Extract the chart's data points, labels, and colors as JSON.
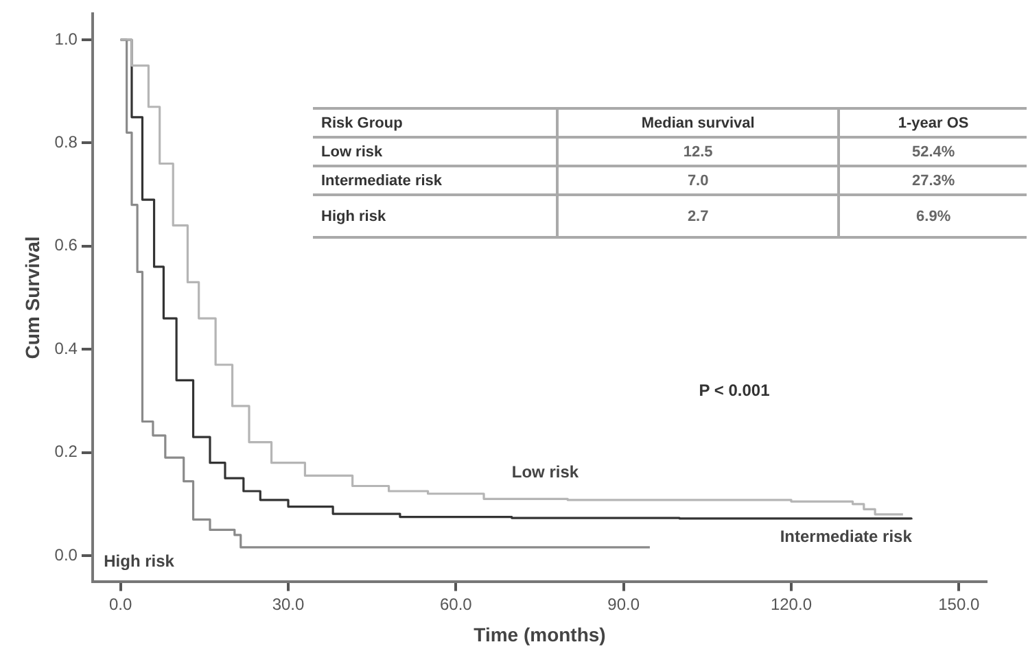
{
  "chart_data": {
    "type": "step",
    "xlabel": "Time (months)",
    "ylabel": "Cum Survival",
    "xlim": [
      -5,
      155
    ],
    "ylim": [
      -0.05,
      1.05
    ],
    "xticks": [
      {
        "value": 0,
        "label": "0.0"
      },
      {
        "value": 30,
        "label": "30.0"
      },
      {
        "value": 60,
        "label": "60.0"
      },
      {
        "value": 90,
        "label": "90.0"
      },
      {
        "value": 120,
        "label": "120.0"
      },
      {
        "value": 150,
        "label": "150.0"
      }
    ],
    "yticks": [
      {
        "value": 0,
        "label": "0.0"
      },
      {
        "value": 0.2,
        "label": "0.2"
      },
      {
        "value": 0.4,
        "label": "0.4"
      },
      {
        "value": 0.6,
        "label": "0.6"
      },
      {
        "value": 0.8,
        "label": "0.8"
      },
      {
        "value": 1,
        "label": "1.0"
      }
    ],
    "grid": false,
    "legend": false,
    "marker": "none",
    "line_style": "solid",
    "series": [
      {
        "name": "Low risk",
        "color": "#b5b5b5",
        "x": [
          0,
          2,
          5,
          7,
          9.4,
          12,
          14,
          17,
          20,
          23,
          27,
          33,
          41.5,
          48,
          55,
          65,
          80,
          100,
          120,
          131,
          133,
          135,
          140
        ],
        "values": [
          1,
          0.95,
          0.87,
          0.76,
          0.64,
          0.53,
          0.46,
          0.37,
          0.29,
          0.22,
          0.18,
          0.155,
          0.135,
          0.125,
          0.12,
          0.11,
          0.108,
          0.108,
          0.105,
          0.1,
          0.09,
          0.08,
          0.08
        ]
      },
      {
        "name": "Intermediate risk",
        "color": "#333333",
        "x": [
          0,
          2,
          3.9,
          6,
          7.7,
          10,
          13,
          16,
          18.7,
          22,
          25,
          30,
          38,
          50,
          70,
          100,
          141.5
        ],
        "values": [
          1,
          0.85,
          0.69,
          0.56,
          0.46,
          0.34,
          0.23,
          0.18,
          0.15,
          0.125,
          0.108,
          0.095,
          0.081,
          0.075,
          0.073,
          0.072,
          0.07
        ]
      },
      {
        "name": "High risk",
        "color": "#8a8a8a",
        "x": [
          0,
          1.1,
          2,
          3,
          3.9,
          5.8,
          8,
          11.3,
          13,
          16,
          20.4,
          21.5,
          94.7
        ],
        "values": [
          1,
          0.82,
          0.68,
          0.55,
          0.26,
          0.233,
          0.19,
          0.144,
          0.07,
          0.05,
          0.04,
          0.016,
          0.016
        ]
      }
    ],
    "annotations": [
      "Risk Group",
      "Median survival",
      "1-year OS",
      "Low risk",
      "12.5",
      "52.4%",
      "Intermediate risk",
      "7.0",
      "27.3%",
      "High risk",
      "2.7",
      "6.9%",
      "P < 0.001"
    ]
  }
}
